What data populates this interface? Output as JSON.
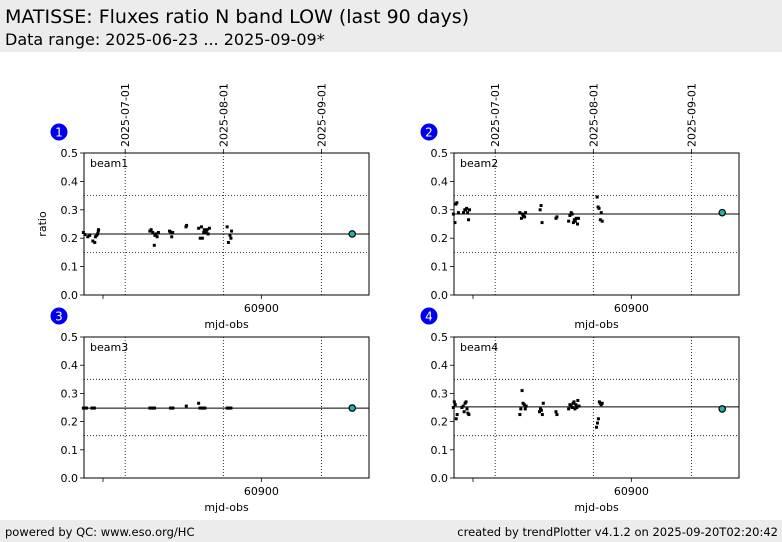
{
  "header": {
    "title": "MATISSE: Fluxes ratio N band LOW (last 90 days)",
    "subtitle": "Data range: 2025-06-23 ... 2025-09-09*"
  },
  "footer": {
    "left": "powered by QC: www.eso.org/HC",
    "right": "created by trendPlotter v4.1.2 on 2025-09-20T02:20:42"
  },
  "colors": {
    "badge": "#0000ee",
    "latest": "#20b2aa",
    "points": "#000000"
  },
  "chart_data": [
    {
      "type": "scatter",
      "panel": "1",
      "label": "beam1",
      "xlabel": "mjd-obs",
      "ylabel": "ratio",
      "xlim": [
        60844,
        60934
      ],
      "ylim": [
        0,
        0.5
      ],
      "yticks": [
        0,
        0.1,
        0.2,
        0.3,
        0.4,
        0.5
      ],
      "xticks": [
        60900
      ],
      "xminor_tick": 60850,
      "date_ticks": [
        {
          "label": "2025-07-01",
          "mjd": 60857
        },
        {
          "label": "2025-08-01",
          "mjd": 60888
        },
        {
          "label": "2025-09-01",
          "mjd": 60919
        }
      ],
      "reference_line": 0.215,
      "thresholds": [
        0.15,
        0.35
      ],
      "latest": {
        "x": 60928.7,
        "y": 0.215
      },
      "x": [
        60843.8,
        60844.3,
        60845.2,
        60845.8,
        60846.8,
        60847.4,
        60847.6,
        60848.0,
        60848.3,
        60848.5,
        60848.6,
        60864.8,
        60865.2,
        60865.7,
        60866.2,
        60866.4,
        60866.7,
        60867.1,
        60867.5,
        60871.0,
        60871.4,
        60871.7,
        60872.0,
        60876.2,
        60876.4,
        60880.2,
        60880.7,
        60881.1,
        60881.4,
        60881.8,
        60882.0,
        60882.3,
        60882.6,
        60882.9,
        60883.2,
        60883.6,
        60889.2,
        60889.6,
        60890.1,
        60890.4,
        60890.6
      ],
      "y": [
        0.22,
        0.213,
        0.205,
        0.21,
        0.19,
        0.185,
        0.205,
        0.21,
        0.215,
        0.225,
        0.23,
        0.225,
        0.23,
        0.22,
        0.175,
        0.21,
        0.215,
        0.205,
        0.22,
        0.225,
        0.222,
        0.205,
        0.22,
        0.24,
        0.245,
        0.235,
        0.2,
        0.24,
        0.2,
        0.22,
        0.23,
        0.22,
        0.225,
        0.23,
        0.215,
        0.235,
        0.24,
        0.185,
        0.21,
        0.2,
        0.225
      ]
    },
    {
      "type": "scatter",
      "panel": "2",
      "label": "beam2",
      "xlabel": "mjd-obs",
      "ylabel": "",
      "xlim": [
        60844,
        60934
      ],
      "ylim": [
        0,
        0.5
      ],
      "yticks": [
        0,
        0.1,
        0.2,
        0.3,
        0.4,
        0.5
      ],
      "xticks": [
        60900
      ],
      "xminor_tick": 60850,
      "date_ticks": [
        {
          "label": "2025-07-01",
          "mjd": 60857
        },
        {
          "label": "2025-08-01",
          "mjd": 60888
        },
        {
          "label": "2025-09-01",
          "mjd": 60919
        }
      ],
      "reference_line": 0.285,
      "thresholds": [
        0.15,
        0.35
      ],
      "latest": {
        "x": 60928.7,
        "y": 0.29
      },
      "x": [
        60843.8,
        60844.3,
        60844.6,
        60844.9,
        60845.4,
        60847.0,
        60847.4,
        60847.7,
        60848.0,
        60848.3,
        60848.6,
        60848.9,
        60864.8,
        60865.3,
        60865.6,
        60865.9,
        60866.3,
        60866.6,
        60871.2,
        60871.5,
        60871.8,
        60876.2,
        60876.5,
        60880.2,
        60880.6,
        60881.0,
        60881.3,
        60881.7,
        60882.0,
        60882.3,
        60882.6,
        60883.0,
        60883.3,
        60889.2,
        60889.5,
        60889.8,
        60890.2,
        60890.5,
        60890.8
      ],
      "y": [
        0.285,
        0.255,
        0.32,
        0.325,
        0.29,
        0.29,
        0.3,
        0.3,
        0.305,
        0.29,
        0.265,
        0.3,
        0.29,
        0.27,
        0.285,
        0.28,
        0.275,
        0.29,
        0.3,
        0.315,
        0.255,
        0.27,
        0.275,
        0.26,
        0.28,
        0.29,
        0.285,
        0.255,
        0.265,
        0.26,
        0.27,
        0.25,
        0.27,
        0.345,
        0.31,
        0.305,
        0.265,
        0.29,
        0.26
      ]
    },
    {
      "type": "scatter",
      "panel": "3",
      "label": "beam3",
      "xlabel": "mjd-obs",
      "ylabel": "",
      "xlim": [
        60844,
        60934
      ],
      "ylim": [
        0,
        0.5
      ],
      "yticks": [
        0,
        0.1,
        0.2,
        0.3,
        0.4,
        0.5
      ],
      "xticks": [
        60900
      ],
      "xminor_tick": 60850,
      "date_ticks": [
        {
          "label": "2025-07-01",
          "mjd": 60857
        },
        {
          "label": "2025-08-01",
          "mjd": 60888
        },
        {
          "label": "2025-09-01",
          "mjd": 60919
        }
      ],
      "reference_line": 0.248,
      "thresholds": [
        0.15,
        0.35
      ],
      "latest": {
        "x": 60928.7,
        "y": 0.248
      },
      "x": [
        60843.8,
        60844.3,
        60844.8,
        60846.5,
        60846.9,
        60847.3,
        60864.8,
        60865.3,
        60865.8,
        60866.3,
        60871.3,
        60871.7,
        60872.1,
        60876.3,
        60880.2,
        60880.6,
        60881.0,
        60881.4,
        60881.8,
        60882.2,
        60889.2,
        60889.6,
        60890.0,
        60890.4
      ],
      "y": [
        0.248,
        0.248,
        0.248,
        0.248,
        0.248,
        0.248,
        0.248,
        0.248,
        0.248,
        0.248,
        0.248,
        0.248,
        0.248,
        0.255,
        0.265,
        0.248,
        0.248,
        0.248,
        0.248,
        0.248,
        0.248,
        0.248,
        0.248,
        0.248
      ]
    },
    {
      "type": "scatter",
      "panel": "4",
      "label": "beam4",
      "xlabel": "mjd-obs",
      "ylabel": "",
      "xlim": [
        60844,
        60934
      ],
      "ylim": [
        0,
        0.5
      ],
      "yticks": [
        0,
        0.1,
        0.2,
        0.3,
        0.4,
        0.5
      ],
      "xticks": [
        60900
      ],
      "xminor_tick": 60850,
      "date_ticks": [
        {
          "label": "2025-07-01",
          "mjd": 60857
        },
        {
          "label": "2025-08-01",
          "mjd": 60888
        },
        {
          "label": "2025-09-01",
          "mjd": 60919
        }
      ],
      "reference_line": 0.252,
      "thresholds": [
        0.15,
        0.35
      ],
      "latest": {
        "x": 60928.7,
        "y": 0.245
      },
      "x": [
        60843.8,
        60844.1,
        60844.4,
        60844.7,
        60845.0,
        60846.5,
        60846.9,
        60847.2,
        60847.5,
        60847.8,
        60848.1,
        60848.4,
        60848.7,
        60864.8,
        60865.1,
        60865.5,
        60865.8,
        60866.2,
        60866.5,
        60866.8,
        60871.0,
        60871.3,
        60871.6,
        60871.9,
        60872.2,
        60876.2,
        60876.5,
        60880.2,
        60880.6,
        60881.0,
        60881.3,
        60881.6,
        60881.9,
        60882.2,
        60882.5,
        60882.8,
        60883.1,
        60883.5,
        60889.0,
        60889.3,
        60889.6,
        60889.9,
        60890.2,
        60890.5,
        60890.8
      ],
      "y": [
        0.25,
        0.27,
        0.26,
        0.21,
        0.225,
        0.25,
        0.255,
        0.235,
        0.265,
        0.27,
        0.245,
        0.23,
        0.225,
        0.225,
        0.245,
        0.31,
        0.265,
        0.26,
        0.245,
        0.255,
        0.235,
        0.245,
        0.24,
        0.225,
        0.265,
        0.235,
        0.225,
        0.245,
        0.26,
        0.255,
        0.25,
        0.265,
        0.27,
        0.245,
        0.26,
        0.25,
        0.275,
        0.255,
        0.18,
        0.195,
        0.21,
        0.27,
        0.265,
        0.26,
        0.265
      ]
    }
  ]
}
